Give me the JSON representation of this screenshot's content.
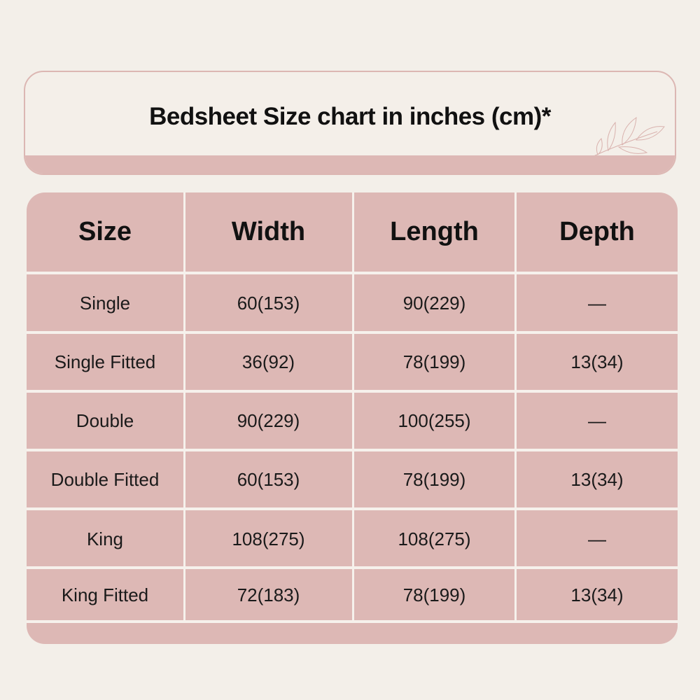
{
  "title": "Bedsheet Size chart in inches (cm)*",
  "colors": {
    "background": "#f3efe9",
    "accent": "#ddb8b5"
  },
  "chart_data": {
    "type": "table",
    "title": "Bedsheet Size chart in inches (cm)*",
    "columns": [
      "Size",
      "Width",
      "Length",
      "Depth"
    ],
    "rows": [
      [
        "Single",
        "60(153)",
        "90(229)",
        "—"
      ],
      [
        "Single Fitted",
        "36(92)",
        "78(199)",
        "13(34)"
      ],
      [
        "Double",
        "90(229)",
        "100(255)",
        "—"
      ],
      [
        "Double Fitted",
        "60(153)",
        "78(199)",
        "13(34)"
      ],
      [
        "King",
        "108(275)",
        "108(275)",
        "—"
      ],
      [
        "King Fitted",
        "72(183)",
        "78(199)",
        "13(34)"
      ]
    ]
  }
}
